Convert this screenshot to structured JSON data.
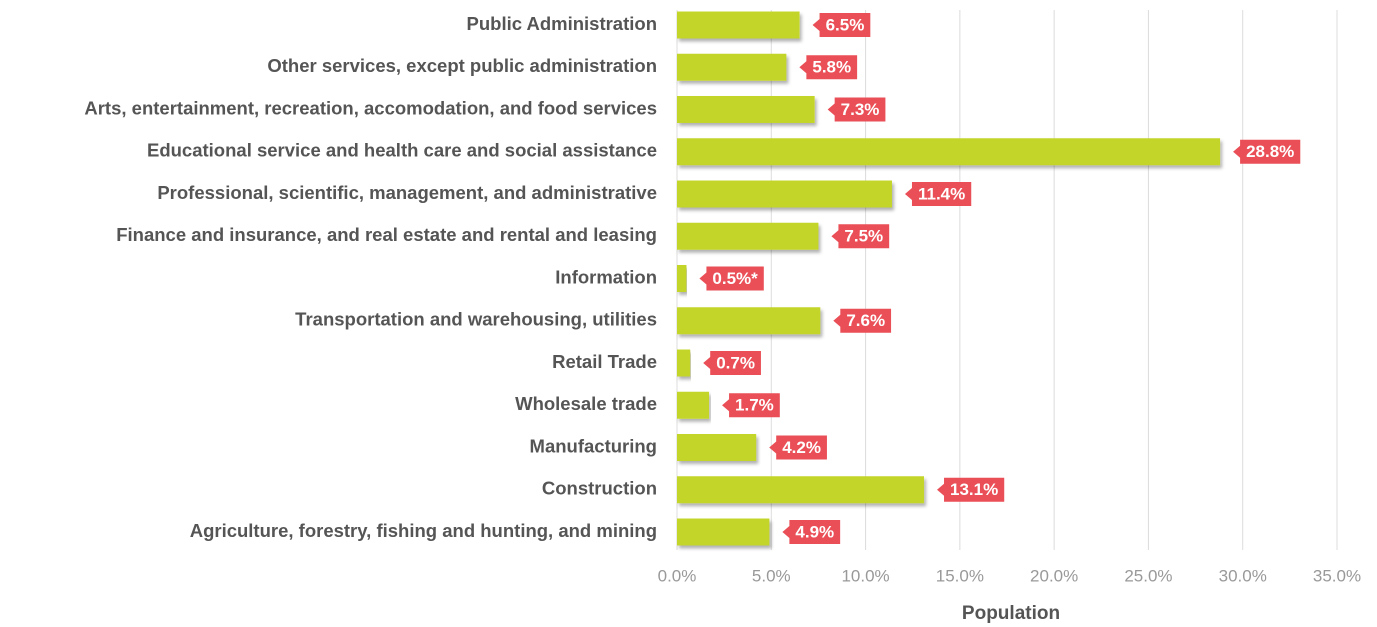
{
  "chart_data": {
    "type": "hbar",
    "categories": [
      "Public Administration",
      "Other services, except public administration",
      "Arts, entertainment, recreation, accomodation, and food services",
      "Educational service and health care and social assistance",
      "Professional, scientific, management, and administrative",
      "Finance and insurance, and real estate and rental and leasing",
      "Information",
      "Transportation and warehousing, utilities",
      "Retail Trade",
      "Wholesale trade",
      "Manufacturing",
      "Construction",
      "Agriculture, forestry, fishing and hunting, and mining"
    ],
    "values": [
      6.5,
      5.8,
      7.3,
      28.8,
      11.4,
      7.5,
      0.5,
      7.6,
      0.7,
      1.7,
      4.2,
      13.1,
      4.9
    ],
    "value_labels": [
      "6.5%",
      "5.8%",
      "7.3%",
      "28.8%",
      "11.4%",
      "7.5%",
      "0.5%*",
      "7.6%",
      "0.7%",
      "1.7%",
      "4.2%",
      "13.1%",
      "4.9%"
    ],
    "color": "#c4d52c",
    "label_color": "#ea4f57",
    "xlabel": "Population",
    "xlim": [
      0,
      35
    ],
    "xticks": [
      {
        "value": 0,
        "label": "0.0%"
      },
      {
        "value": 5,
        "label": "5.0%"
      },
      {
        "value": 10,
        "label": "10.0%"
      },
      {
        "value": 15,
        "label": "15.0%"
      },
      {
        "value": 20,
        "label": "20.0%"
      },
      {
        "value": 25,
        "label": "25.0%"
      },
      {
        "value": 30,
        "label": "30.0%"
      },
      {
        "value": 35,
        "label": "35.0%"
      }
    ],
    "grid": true
  }
}
